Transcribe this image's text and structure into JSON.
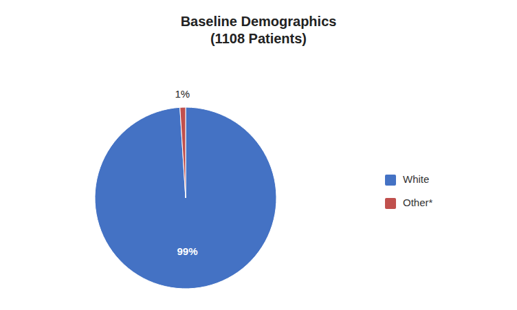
{
  "chart_data": {
    "type": "pie",
    "title": "Baseline Demographics\n(1108 Patients)",
    "categories": [
      "White",
      "Other*"
    ],
    "values": [
      99,
      1
    ],
    "value_labels": [
      "99%",
      "1%"
    ],
    "colors": [
      "#4472C4",
      "#C0504D"
    ],
    "data_labels": true,
    "legend": "right"
  }
}
